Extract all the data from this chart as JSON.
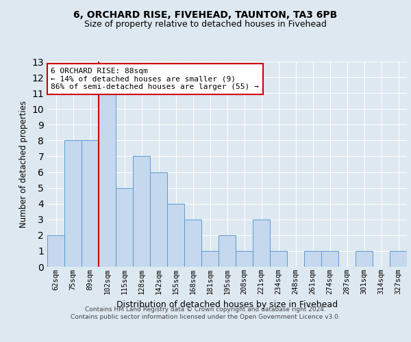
{
  "title1": "6, ORCHARD RISE, FIVEHEAD, TAUNTON, TA3 6PB",
  "title2": "Size of property relative to detached houses in Fivehead",
  "xlabel": "Distribution of detached houses by size in Fivehead",
  "ylabel": "Number of detached properties",
  "categories": [
    "62sqm",
    "75sqm",
    "89sqm",
    "102sqm",
    "115sqm",
    "128sqm",
    "142sqm",
    "155sqm",
    "168sqm",
    "181sqm",
    "195sqm",
    "208sqm",
    "221sqm",
    "234sqm",
    "248sqm",
    "261sqm",
    "274sqm",
    "287sqm",
    "301sqm",
    "314sqm",
    "327sqm"
  ],
  "values": [
    2,
    8,
    8,
    11,
    5,
    7,
    6,
    4,
    3,
    1,
    2,
    1,
    3,
    1,
    0,
    1,
    1,
    0,
    1,
    0,
    1
  ],
  "bar_color": "#c5d8ed",
  "bar_edge_color": "#5b9bd5",
  "highlight_line_color": "#cc0000",
  "annotation_text": "6 ORCHARD RISE: 88sqm\n← 14% of detached houses are smaller (9)\n86% of semi-detached houses are larger (55) →",
  "annotation_box_color": "#ffffff",
  "annotation_box_edge": "#cc0000",
  "ylim": [
    0,
    13
  ],
  "yticks": [
    0,
    1,
    2,
    3,
    4,
    5,
    6,
    7,
    8,
    9,
    10,
    11,
    12,
    13
  ],
  "footer1": "Contains HM Land Registry data © Crown copyright and database right 2024.",
  "footer2": "Contains public sector information licensed under the Open Government Licence v3.0.",
  "bg_color": "#dde8f0",
  "plot_bg_color": "#dde8f0"
}
